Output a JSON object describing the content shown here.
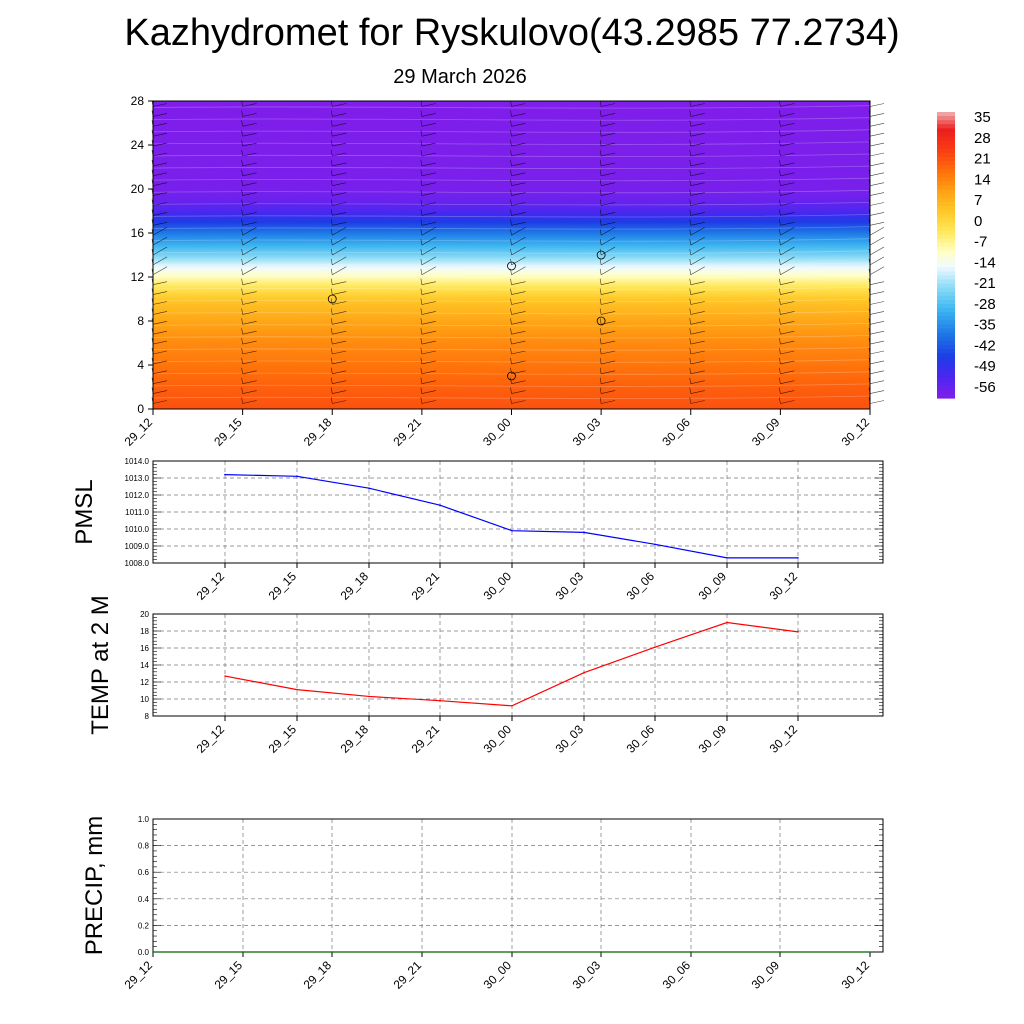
{
  "title": "Kazhydromet for Ryskulovo(43.2985 77.2734)",
  "date": "29 March 2026",
  "colors": {
    "pmsl_line": "#0000ff",
    "temp_line": "#ff0000",
    "precip_line": "#006400",
    "grid": "#777777"
  },
  "chart_data": [
    {
      "type": "heatmap",
      "name": "vertical-cross-section",
      "x_ticks": [
        "29_12",
        "29_15",
        "29_18",
        "29_21",
        "30_00",
        "30_03",
        "30_06",
        "30_09",
        "30_12"
      ],
      "y_ticks": [
        "0",
        "4",
        "8",
        "12",
        "16",
        "20",
        "24",
        "28"
      ],
      "ylim": [
        0,
        28
      ],
      "colorbar": {
        "labels": [
          "35",
          "28",
          "21",
          "14",
          "7",
          "0",
          "-7",
          "-14",
          "-21",
          "-28",
          "-35",
          "-42",
          "-49",
          "-56"
        ],
        "range": [
          -60,
          38
        ]
      },
      "temperature_profile_by_height": [
        {
          "h": 0,
          "t": 22
        },
        {
          "h": 2,
          "t": 20
        },
        {
          "h": 4,
          "t": 17
        },
        {
          "h": 6,
          "t": 14
        },
        {
          "h": 8,
          "t": 10
        },
        {
          "h": 10,
          "t": 4
        },
        {
          "h": 11,
          "t": -2
        },
        {
          "h": 12,
          "t": -9
        },
        {
          "h": 13,
          "t": -16
        },
        {
          "h": 14,
          "t": -24
        },
        {
          "h": 15,
          "t": -31
        },
        {
          "h": 16,
          "t": -38
        },
        {
          "h": 17,
          "t": -46
        },
        {
          "h": 18,
          "t": -53
        },
        {
          "h": 19,
          "t": -57
        },
        {
          "h": 20,
          "t": -59
        },
        {
          "h": 28,
          "t": -60
        }
      ]
    },
    {
      "type": "line",
      "name": "pmsl",
      "ylabel": "PMSL",
      "x": [
        "29_12",
        "29_15",
        "29_18",
        "29_21",
        "30_00",
        "30_03",
        "30_06",
        "30_09",
        "30_12"
      ],
      "values": [
        1013.2,
        1013.1,
        1012.4,
        1011.4,
        1009.9,
        1009.8,
        1009.1,
        1008.3,
        1008.3
      ],
      "ylim": [
        1008.0,
        1014.0
      ],
      "y_ticks": [
        "1008.0",
        "1009.0",
        "1010.0",
        "1011.0",
        "1012.0",
        "1013.0",
        "1014.0"
      ]
    },
    {
      "type": "line",
      "name": "temp-2m",
      "ylabel": "TEMP at 2 M",
      "x": [
        "29_12",
        "29_15",
        "29_18",
        "29_21",
        "30_00",
        "30_03",
        "30_06",
        "30_09",
        "30_12"
      ],
      "values": [
        12.7,
        11.1,
        10.3,
        9.8,
        9.2,
        13.1,
        16.1,
        19.0,
        17.9
      ],
      "ylim": [
        8,
        20
      ],
      "y_ticks": [
        "8",
        "10",
        "12",
        "14",
        "16",
        "18",
        "20"
      ]
    },
    {
      "type": "line",
      "name": "precip",
      "ylabel": "PRECIP, mm",
      "x": [
        "29_12",
        "29_15",
        "29_18",
        "29_21",
        "30_00",
        "30_03",
        "30_06",
        "30_09",
        "30_12"
      ],
      "values": [
        0,
        0,
        0,
        0,
        0,
        0,
        0,
        0,
        0
      ],
      "ylim": [
        0.0,
        1.0
      ],
      "y_ticks": [
        "0.0",
        "0.2",
        "0.4",
        "0.6",
        "0.8",
        "1.0"
      ]
    }
  ]
}
